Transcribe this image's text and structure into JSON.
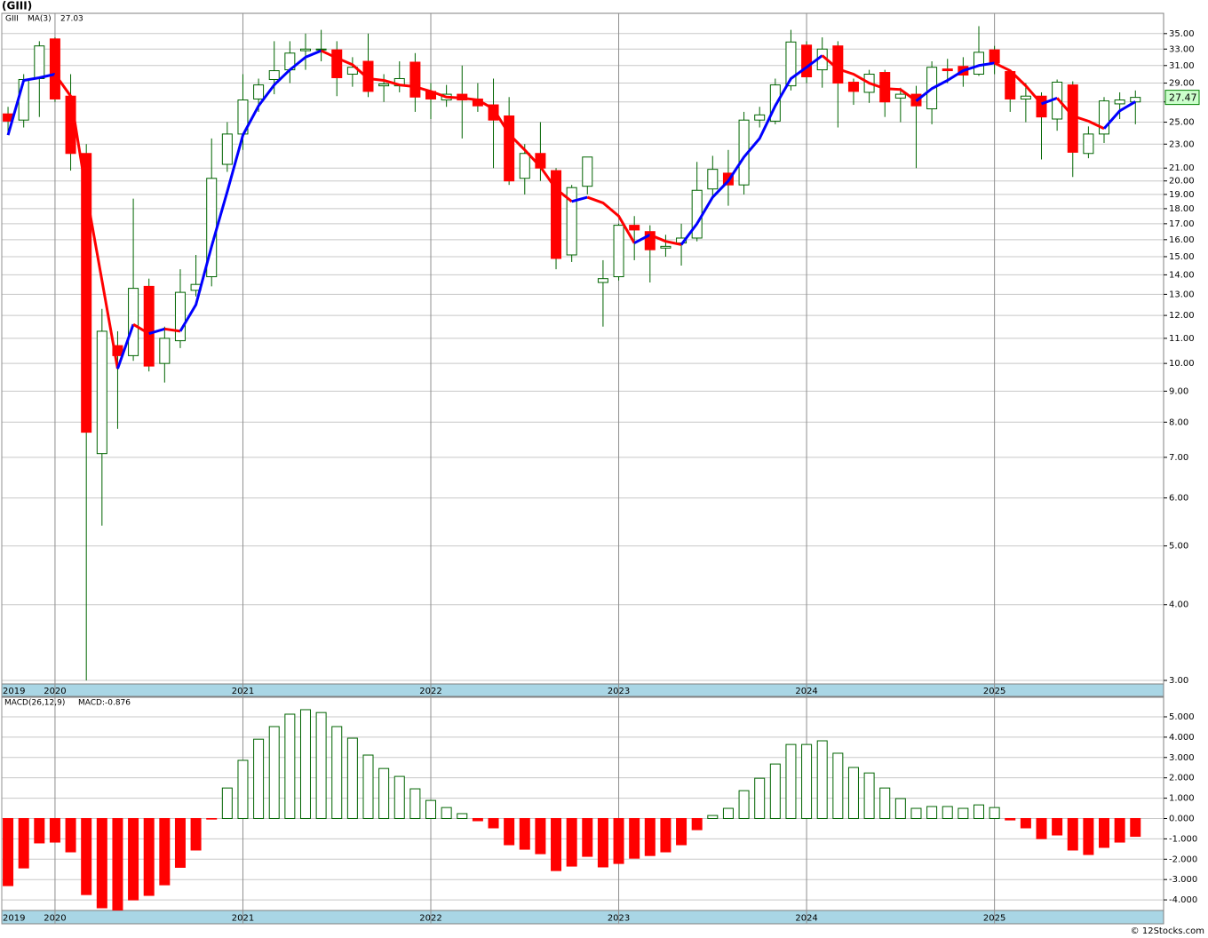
{
  "chart_data": [
    {
      "type": "candlestick",
      "title": "(GIII)",
      "symbol": "GIII",
      "open": [
        25.8,
        25.2,
        29.5,
        34.3,
        27.6,
        22.2,
        7.1,
        10.7,
        10.3,
        13.4,
        10.0,
        10.9,
        13.2,
        13.9,
        21.3,
        23.9,
        27.3,
        29.4,
        30.5,
        32.8,
        33.0,
        32.9,
        30.0,
        31.5,
        28.7,
        28.7,
        31.4,
        28.1,
        27.2,
        27.8,
        27.3,
        26.7,
        25.6,
        20.2,
        22.2,
        20.8,
        15.1,
        19.6,
        13.6,
        13.9,
        16.9,
        16.5,
        15.5,
        15.8,
        16.1,
        19.4,
        20.6,
        19.7,
        25.2,
        25.1,
        28.7,
        33.5,
        30.5,
        33.4,
        29.1,
        28.0,
        30.2,
        27.4,
        27.8,
        26.3,
        30.6,
        30.9,
        30.0,
        32.9,
        30.3,
        27.3,
        27.6,
        25.3,
        28.8,
        22.2,
        23.9,
        26.8,
        27.0
      ],
      "high": [
        26.5,
        30,
        34,
        34.5,
        30,
        23,
        12.3,
        11.3,
        18.7,
        13.8,
        11.5,
        14.3,
        15.1,
        23.5,
        25,
        30,
        29.5,
        34,
        34,
        35,
        35.5,
        34,
        32,
        35,
        30,
        31.5,
        32.5,
        29,
        28.8,
        31,
        29,
        29.5,
        27.5,
        23,
        25,
        21,
        19.7,
        21.9,
        14.8,
        17,
        17.5,
        16.9,
        16.3,
        17,
        21.5,
        22,
        22.5,
        26,
        26.5,
        29.5,
        35.5,
        34,
        34.5,
        34,
        29.5,
        30.5,
        30.5,
        28.5,
        28.7,
        31.5,
        31.8,
        32,
        36,
        33.4,
        30.5,
        29,
        28,
        29.4,
        29.2,
        24.6,
        27.5,
        28,
        28.2
      ],
      "low": [
        24,
        24.5,
        25.5,
        27,
        20.8,
        3.0,
        5.4,
        7.8,
        10.1,
        9.7,
        9.3,
        10.6,
        12.9,
        13.4,
        20.7,
        22.5,
        26,
        27.8,
        29,
        30.5,
        31.5,
        27.6,
        28.6,
        27.5,
        27,
        28,
        26,
        25.3,
        26.5,
        23.5,
        26,
        21,
        19.7,
        19,
        20,
        14.3,
        14.7,
        19,
        11.5,
        13.7,
        14.8,
        13.6,
        15,
        14.5,
        15.9,
        18.8,
        18.2,
        19,
        24.5,
        24.8,
        28.2,
        29,
        28.5,
        24.5,
        26.7,
        26.9,
        25.5,
        25,
        21,
        24.8,
        29,
        28.6,
        29.8,
        30,
        26,
        25,
        21.7,
        24.2,
        20.3,
        21.8,
        23.1,
        25.3,
        24.8
      ],
      "close": [
        25.1,
        29.4,
        33.4,
        27.3,
        22.2,
        7.7,
        11.3,
        10.3,
        13.3,
        9.9,
        11.0,
        13.1,
        13.5,
        20.2,
        23.9,
        27.2,
        28.8,
        30.4,
        32.5,
        33.0,
        33.0,
        29.6,
        30.8,
        28.1,
        28.9,
        29.5,
        27.5,
        27.3,
        27.8,
        27.2,
        26.6,
        25.2,
        20.0,
        22.2,
        21.0,
        14.9,
        19.5,
        21.9,
        13.8,
        16.9,
        16.6,
        15.4,
        15.6,
        16.1,
        19.3,
        20.9,
        19.7,
        25.2,
        25.7,
        28.8,
        33.9,
        29.7,
        33.0,
        29.0,
        28.1,
        30.0,
        27.0,
        27.8,
        26.6,
        30.8,
        30.4,
        29.9,
        32.6,
        31.3,
        27.3,
        27.6,
        25.5,
        29.1,
        22.3,
        23.9,
        27.1,
        27.2,
        27.47
      ],
      "up_color": "#ffffff",
      "down_color": "#ff0000",
      "wick_color": "#006400",
      "price_tag_color": "#ccffcc",
      "series": [
        {
          "name": "MA(3)",
          "up_color": "#0000ff",
          "down_color": "#ff0000",
          "values": [
            23.8,
            29.3,
            29.6,
            30.0,
            27.6,
            19.1,
            13.7,
            9.8,
            11.6,
            11.2,
            11.4,
            11.3,
            12.5,
            15.6,
            19.2,
            23.8,
            26.6,
            28.8,
            30.5,
            32.0,
            32.8,
            31.9,
            31.1,
            29.5,
            29.3,
            28.8,
            28.6,
            28.1,
            27.5,
            27.4,
            27.2,
            26.3,
            23.9,
            22.5,
            21.1,
            19.4,
            18.5,
            18.8,
            18.4,
            17.5,
            15.8,
            16.3,
            15.9,
            15.7,
            17.0,
            18.8,
            20.0,
            21.9,
            23.5,
            26.6,
            29.5,
            30.8,
            32.2,
            30.6,
            30.0,
            29.0,
            28.4,
            28.3,
            27.1,
            28.4,
            29.3,
            30.4,
            31.0,
            31.3,
            30.4,
            28.7,
            26.8,
            27.4,
            25.6,
            25.1,
            24.4,
            26.1,
            27.03
          ]
        }
      ],
      "log_scale": true,
      "ylim": [
        2.96,
        37.8
      ],
      "yticks": [
        {
          "value": 3,
          "label": "3.00"
        },
        {
          "value": 4,
          "label": "4.00"
        },
        {
          "value": 5,
          "label": "5.00"
        },
        {
          "value": 6,
          "label": "6.00"
        },
        {
          "value": 7,
          "label": "7.00"
        },
        {
          "value": 8,
          "label": "8.00"
        },
        {
          "value": 9,
          "label": "9.00"
        },
        {
          "value": 10,
          "label": "10.00"
        },
        {
          "value": 11,
          "label": "11.00"
        },
        {
          "value": 12,
          "label": "12.00"
        },
        {
          "value": 13,
          "label": "13.00"
        },
        {
          "value": 14,
          "label": "14.00"
        },
        {
          "value": 15,
          "label": "15.00"
        },
        {
          "value": 16,
          "label": "16.00"
        },
        {
          "value": 17,
          "label": "17.00"
        },
        {
          "value": 18,
          "label": "18.00"
        },
        {
          "value": 19,
          "label": "19.00"
        },
        {
          "value": 20,
          "label": "20.00"
        },
        {
          "value": 21,
          "label": "21.00"
        },
        {
          "value": 23,
          "label": "23.00"
        },
        {
          "value": 25,
          "label": "25.00"
        },
        {
          "value": 27,
          "label": "27.00"
        },
        {
          "value": 29,
          "label": "29.00"
        },
        {
          "value": 31,
          "label": "31.00"
        },
        {
          "value": 33,
          "label": "33.00"
        },
        {
          "value": 35,
          "label": "35.00"
        }
      ],
      "xlim": [
        -0.4,
        73.8
      ],
      "xticks": [
        {
          "value": -0.4,
          "label": "2019"
        },
        {
          "value": 3,
          "label": "2020"
        },
        {
          "value": 15,
          "label": "2021"
        },
        {
          "value": 27,
          "label": "2022"
        },
        {
          "value": 39,
          "label": "2023"
        },
        {
          "value": 51,
          "label": "2024"
        },
        {
          "value": 63,
          "label": "2025"
        }
      ],
      "grid": true
    },
    {
      "type": "bar",
      "title": "MACD(26,12,9)",
      "value_name": "MACD:",
      "values": [
        -3.3,
        -2.43,
        -1.2,
        -1.16,
        -1.64,
        -3.74,
        -4.39,
        -4.5,
        -4.0,
        -3.78,
        -3.26,
        -2.4,
        -1.55,
        -0.03,
        1.5,
        2.86,
        3.9,
        4.52,
        5.13,
        5.35,
        5.21,
        4.52,
        3.95,
        3.12,
        2.46,
        2.07,
        1.46,
        0.89,
        0.54,
        0.24,
        -0.11,
        -0.46,
        -1.29,
        -1.51,
        -1.73,
        -2.56,
        -2.34,
        -1.86,
        -2.38,
        -2.21,
        -1.95,
        -1.82,
        -1.64,
        -1.29,
        -0.55,
        0.15,
        0.5,
        1.37,
        1.98,
        2.68,
        3.64,
        3.64,
        3.82,
        3.21,
        2.51,
        2.24,
        1.5,
        0.98,
        0.5,
        0.59,
        0.59,
        0.5,
        0.67,
        0.54,
        -0.07,
        -0.46,
        -0.99,
        -0.81,
        -1.55,
        -1.77,
        -1.42,
        -1.16,
        -0.876
      ],
      "up_color": "#ffffff",
      "up_stroke": "#006400",
      "down_color": "#ff0000",
      "ylim": [
        -4.52,
        5.96
      ],
      "yticks": [
        {
          "value": -4,
          "label": "-4.000"
        },
        {
          "value": -3,
          "label": "-3.000"
        },
        {
          "value": -2,
          "label": "-2.000"
        },
        {
          "value": -1,
          "label": "-1.000"
        },
        {
          "value": 0,
          "label": "0.000"
        },
        {
          "value": 1,
          "label": "1.000"
        },
        {
          "value": 2,
          "label": "2.000"
        },
        {
          "value": 3,
          "label": "3.000"
        },
        {
          "value": 4,
          "label": "4.000"
        },
        {
          "value": 5,
          "label": "5.000"
        }
      ],
      "xlim": [
        -0.4,
        73.8
      ],
      "xticks": [
        {
          "value": -0.4,
          "label": "2019"
        },
        {
          "value": 3,
          "label": "2020"
        },
        {
          "value": 15,
          "label": "2021"
        },
        {
          "value": 27,
          "label": "2022"
        },
        {
          "value": 39,
          "label": "2023"
        },
        {
          "value": 51,
          "label": "2024"
        },
        {
          "value": 63,
          "label": "2025"
        }
      ],
      "grid": true
    }
  ],
  "footer": "© 12Stocks.com"
}
